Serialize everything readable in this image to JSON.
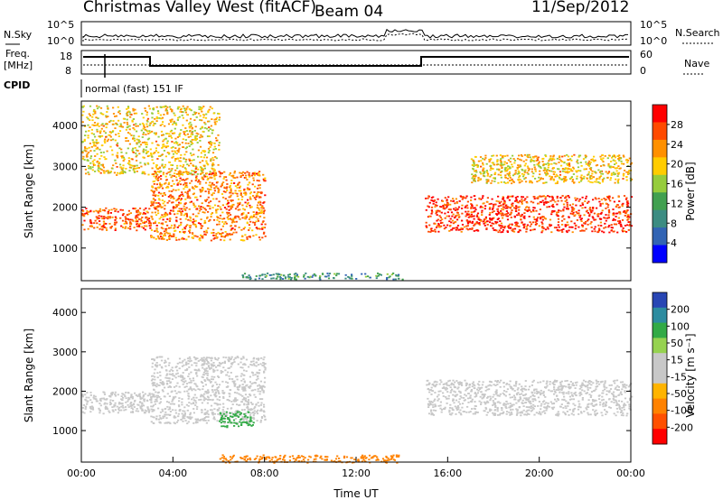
{
  "header": {
    "title": "Christmas Valley West (fitACF)",
    "beam": "Beam 04",
    "date": "11/Sep/2012"
  },
  "strips": {
    "nsky_label": "N.Sky",
    "nsearch_label": "N.Search",
    "noise_ticks": [
      "10^5",
      "10^0"
    ],
    "freq_label_1": "Freq.",
    "freq_label_2": "[MHz]",
    "freq_ticks": [
      "18",
      "8"
    ],
    "nave_label": "Nave",
    "nave_ticks": [
      "60",
      "0"
    ],
    "cpid_label": "CPID",
    "cpid_value": "normal (fast) 151 IF"
  },
  "chart_data": [
    {
      "type": "heatmap",
      "name": "power",
      "ylabel": "Slant Range [km]",
      "y_ticks": [
        1000,
        2000,
        3000,
        4000
      ],
      "ylim": [
        200,
        4600
      ],
      "xlim": [
        0,
        24
      ],
      "colorbar": {
        "label": "Power [dB]",
        "ticks": [
          "28",
          "24",
          "20",
          "16",
          "12",
          "8",
          "4"
        ],
        "colors": [
          "#ff0000",
          "#ff4a00",
          "#ff9000",
          "#ffcc00",
          "#96cc3c",
          "#41a050",
          "#3c8c82",
          "#3264b4",
          "#0000ff"
        ]
      },
      "features": [
        {
          "x": [
            0,
            3
          ],
          "y": [
            1450,
            2000
          ],
          "value": 24
        },
        {
          "x": [
            0,
            6
          ],
          "y": [
            2800,
            4500
          ],
          "value": 18
        },
        {
          "x": [
            3,
            8
          ],
          "y": [
            1200,
            2900
          ],
          "value": 22
        },
        {
          "x": [
            15,
            24
          ],
          "y": [
            1400,
            2300
          ],
          "value": 26
        },
        {
          "x": [
            17,
            24
          ],
          "y": [
            2600,
            3300
          ],
          "value": 18
        },
        {
          "x": [
            7,
            14
          ],
          "y": [
            250,
            400
          ],
          "value": 8
        }
      ]
    },
    {
      "type": "heatmap",
      "name": "velocity",
      "ylabel": "Slant Range [km]",
      "xlabel": "Time UT",
      "y_ticks": [
        1000,
        2000,
        3000,
        4000
      ],
      "ylim": [
        200,
        4600
      ],
      "xlim": [
        0,
        24
      ],
      "x_ticks": [
        "00:00",
        "04:00",
        "08:00",
        "12:00",
        "16:00",
        "20:00",
        "00:00"
      ],
      "colorbar": {
        "label": "Velocity [m s⁻¹]",
        "ticks": [
          "200",
          "100",
          "50",
          "15",
          "-15",
          "-50",
          "-100",
          "-200"
        ],
        "colors": [
          "#2846b4",
          "#2d8ca0",
          "#32aa46",
          "#96d250",
          "#c8c8c8",
          "#c8c8c8",
          "#ffb400",
          "#ff8200",
          "#ff5000",
          "#ff0000"
        ]
      },
      "features": [
        {
          "x": [
            0,
            3
          ],
          "y": [
            1450,
            2000
          ],
          "value": 0
        },
        {
          "x": [
            3,
            8
          ],
          "y": [
            1200,
            2900
          ],
          "value": 0
        },
        {
          "x": [
            15,
            24
          ],
          "y": [
            1400,
            2300
          ],
          "value": 0
        },
        {
          "x": [
            6,
            7.5
          ],
          "y": [
            1100,
            1500
          ],
          "value": 60
        },
        {
          "x": [
            6,
            14
          ],
          "y": [
            200,
            400
          ],
          "value": -60
        }
      ]
    }
  ]
}
